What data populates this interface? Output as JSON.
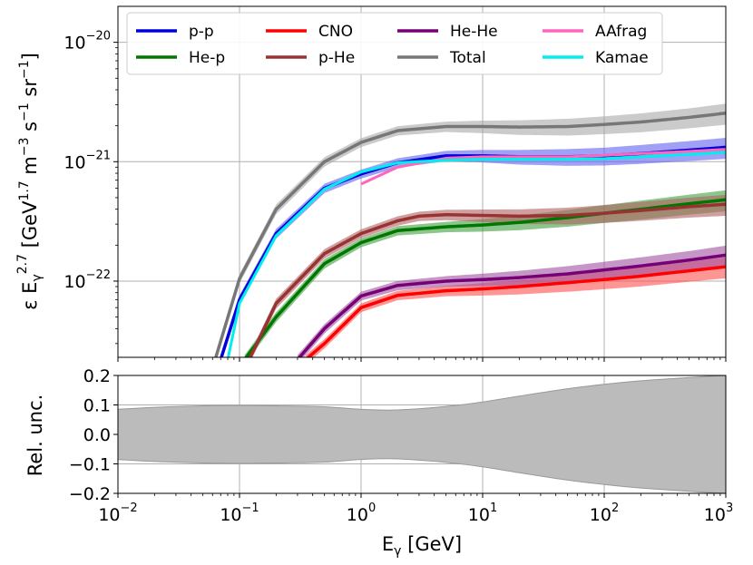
{
  "chart_data": [
    {
      "type": "line",
      "panel": "top",
      "xscale": "log",
      "yscale": "log",
      "xlim": [
        0.01,
        1000
      ],
      "ylim": [
        2.3e-23,
        2e-20
      ],
      "x_ticks": [
        {
          "base": "10",
          "exp": "−2"
        },
        {
          "base": "10",
          "exp": "−1"
        },
        {
          "base": "10",
          "exp": "0"
        },
        {
          "base": "10",
          "exp": "1"
        },
        {
          "base": "10",
          "exp": "2"
        },
        {
          "base": "10",
          "exp": "3"
        }
      ],
      "y_ticks": [
        {
          "value": 1e-22,
          "base": "10",
          "exp": "−22"
        },
        {
          "value": 1e-21,
          "base": "10",
          "exp": "−21"
        },
        {
          "value": 1e-20,
          "base": "10",
          "exp": "−20"
        }
      ],
      "ylabel": {
        "prefix": "ε E",
        "sub": "γ",
        "sup": "2.7",
        "units_open": " [GeV",
        "units_sup1": "1.7",
        "units_mid1": " m",
        "units_sup2": "−3",
        "units_mid2": " s",
        "units_sup3": "−1",
        "units_mid3": " sr",
        "units_sup4": "−1",
        "units_close": "]"
      },
      "grid": true,
      "legend": "top, 4 columns",
      "series": [
        {
          "name": "p-p",
          "color": "#0000dd",
          "band": "#6060f0",
          "x": [
            0.07,
            0.1,
            0.2,
            0.5,
            1,
            2,
            5,
            10,
            20,
            50,
            100,
            200,
            500,
            1000
          ],
          "y": [
            2.2e-23,
            7e-23,
            2.5e-22,
            6e-22,
            7.9e-22,
            9.8e-22,
            1.12e-21,
            1.12e-21,
            1.1e-21,
            1.1e-21,
            1.12e-21,
            1.17e-21,
            1.25e-21,
            1.32e-21
          ],
          "rel_unc": [
            0.09,
            0.09,
            0.095,
            0.09,
            0.085,
            0.09,
            0.1,
            0.12,
            0.14,
            0.16,
            0.17,
            0.18,
            0.19,
            0.2
          ]
        },
        {
          "name": "He-p",
          "color": "#007700",
          "band": "#40a040",
          "x": [
            0.11,
            0.2,
            0.5,
            1,
            2,
            5,
            10,
            20,
            50,
            100,
            200,
            500,
            1000
          ],
          "y": [
            2.2e-23,
            5e-23,
            1.4e-22,
            2.1e-22,
            2.65e-22,
            2.85e-22,
            2.95e-22,
            3.1e-22,
            3.4e-22,
            3.7e-22,
            4e-22,
            4.45e-22,
            4.8e-22
          ],
          "rel_unc": [
            0.09,
            0.095,
            0.09,
            0.085,
            0.09,
            0.1,
            0.12,
            0.14,
            0.16,
            0.17,
            0.18,
            0.19,
            0.2
          ]
        },
        {
          "name": "CNO",
          "color": "#ff0000",
          "band": "#ff5050",
          "x": [
            0.35,
            0.5,
            1,
            2,
            5,
            10,
            20,
            50,
            100,
            200,
            500,
            1000
          ],
          "y": [
            2.2e-23,
            3e-23,
            6e-23,
            7.6e-23,
            8.3e-23,
            8.6e-23,
            9e-23,
            9.7e-23,
            1.03e-22,
            1.1e-22,
            1.22e-22,
            1.32e-22
          ],
          "rel_unc": [
            0.09,
            0.09,
            0.085,
            0.09,
            0.1,
            0.12,
            0.14,
            0.16,
            0.17,
            0.18,
            0.19,
            0.2
          ]
        },
        {
          "name": "p-He",
          "color": "#993333",
          "band": "#b06060",
          "x": [
            0.12,
            0.2,
            0.5,
            1,
            2,
            3,
            5,
            10,
            20,
            50,
            100,
            200,
            500,
            1000
          ],
          "y": [
            2.2e-23,
            6.5e-23,
            1.7e-22,
            2.5e-22,
            3.2e-22,
            3.5e-22,
            3.6e-22,
            3.55e-22,
            3.5e-22,
            3.55e-22,
            3.7e-22,
            3.9e-22,
            4.2e-22,
            4.4e-22
          ],
          "rel_unc": [
            0.09,
            0.095,
            0.09,
            0.085,
            0.09,
            0.09,
            0.1,
            0.12,
            0.14,
            0.16,
            0.17,
            0.18,
            0.19,
            0.2
          ]
        },
        {
          "name": "Total",
          "color": "#777777",
          "band": "#a8a8a8",
          "x": [
            0.063,
            0.1,
            0.2,
            0.5,
            1,
            2,
            5,
            10,
            20,
            50,
            100,
            200,
            500,
            1000
          ],
          "y": [
            2.2e-23,
            1.05e-22,
            4e-22,
            1e-21,
            1.45e-21,
            1.82e-21,
            1.97e-21,
            1.97e-21,
            1.95e-21,
            1.97e-21,
            2.05e-21,
            2.15e-21,
            2.35e-21,
            2.55e-21
          ],
          "rel_unc": [
            0.09,
            0.09,
            0.095,
            0.09,
            0.085,
            0.09,
            0.1,
            0.12,
            0.14,
            0.16,
            0.17,
            0.18,
            0.19,
            0.2
          ]
        },
        {
          "name": "He-He",
          "color": "#770077",
          "band": "#a050a0",
          "x": [
            0.3,
            0.5,
            1,
            2,
            5,
            10,
            20,
            50,
            100,
            200,
            500,
            1000
          ],
          "y": [
            2.2e-23,
            4e-23,
            7.5e-23,
            9.2e-23,
            1e-22,
            1.03e-22,
            1.07e-22,
            1.15e-22,
            1.24e-22,
            1.34e-22,
            1.5e-22,
            1.65e-22
          ],
          "rel_unc": [
            0.09,
            0.09,
            0.085,
            0.09,
            0.1,
            0.12,
            0.14,
            0.16,
            0.17,
            0.18,
            0.19,
            0.2
          ]
        },
        {
          "name": "AAfrag",
          "color": "#ff66bb",
          "band": null,
          "x": [
            1,
            2,
            5,
            10,
            20,
            50,
            100,
            200,
            500,
            1000
          ],
          "y": [
            6.5e-22,
            9e-22,
            1.07e-21,
            1.1e-21,
            1.1e-21,
            1.1e-21,
            1.13e-21,
            1.17e-21,
            1.22e-21,
            1.27e-21
          ],
          "rel_unc": null
        },
        {
          "name": "Kamae",
          "color": "#00eeee",
          "band": null,
          "x": [
            0.08,
            0.1,
            0.2,
            0.5,
            1,
            2,
            5,
            10,
            20,
            50,
            100,
            200,
            500,
            1000
          ],
          "y": [
            2.2e-23,
            6.5e-23,
            2.4e-22,
            5.9e-22,
            8.2e-22,
            9.8e-22,
            1.03e-21,
            1.05e-21,
            1.05e-21,
            1.05e-21,
            1.06e-21,
            1.1e-21,
            1.15e-21,
            1.2e-21
          ],
          "rel_unc": null
        }
      ]
    },
    {
      "type": "area",
      "panel": "bottom",
      "xscale": "log",
      "xlim": [
        0.01,
        1000
      ],
      "ylim": [
        -0.2,
        0.2
      ],
      "ylabel": "Rel. unc.",
      "xlabel": {
        "main": "E",
        "sub": "γ",
        "units": " [GeV]"
      },
      "y_ticks": [
        "−0.2",
        "−0.1",
        "0.0",
        "0.1",
        "0.2"
      ],
      "grid": true,
      "band_color": "#bbbbbb",
      "x": [
        0.01,
        0.02,
        0.05,
        0.1,
        0.2,
        0.5,
        1,
        2,
        5,
        10,
        20,
        50,
        100,
        200,
        500,
        1000
      ],
      "upper": [
        0.085,
        0.092,
        0.097,
        0.098,
        0.097,
        0.094,
        0.085,
        0.083,
        0.095,
        0.11,
        0.13,
        0.155,
        0.17,
        0.182,
        0.193,
        0.2
      ],
      "lower": [
        -0.085,
        -0.092,
        -0.097,
        -0.098,
        -0.097,
        -0.094,
        -0.085,
        -0.083,
        -0.095,
        -0.11,
        -0.13,
        -0.155,
        -0.17,
        -0.182,
        -0.193,
        -0.2
      ]
    }
  ]
}
